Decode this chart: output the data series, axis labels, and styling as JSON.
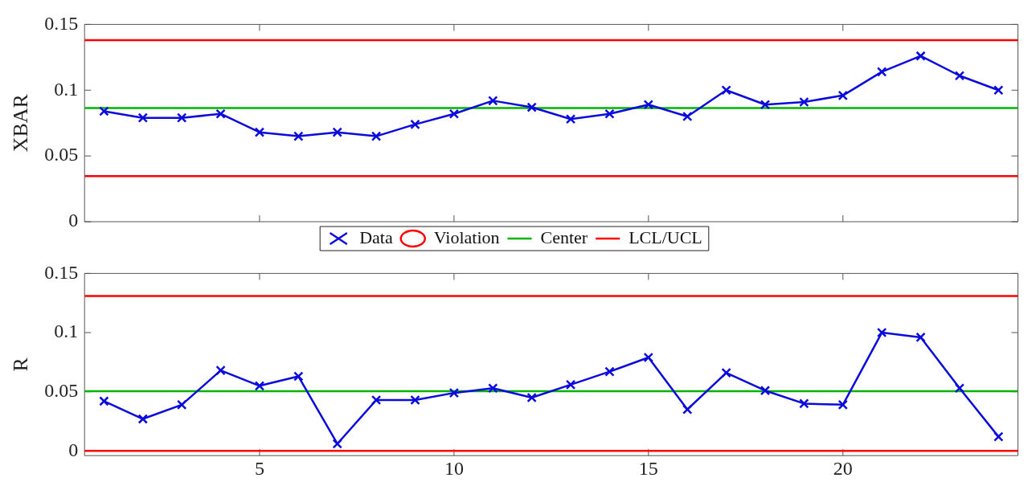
{
  "chart_data": [
    {
      "type": "line",
      "ylabel": "XBAR",
      "x": [
        1,
        2,
        3,
        4,
        5,
        6,
        7,
        8,
        9,
        10,
        11,
        12,
        13,
        14,
        15,
        16,
        17,
        18,
        19,
        20,
        21,
        22,
        23,
        24
      ],
      "xlim": [
        0.5,
        24.5
      ],
      "xticks": [
        5,
        10,
        15,
        20
      ],
      "ylim": [
        0,
        0.15
      ],
      "yticks": [
        0,
        0.05,
        0.1,
        0.15
      ],
      "tick_labels": "y",
      "legend": "bottom",
      "series": [
        {
          "name": "Data",
          "type": "line",
          "marker": "cross",
          "color": "#0a0adc",
          "values": [
            0.084,
            0.079,
            0.079,
            0.082,
            0.068,
            0.065,
            0.068,
            0.065,
            0.074,
            0.082,
            0.092,
            0.087,
            0.078,
            0.082,
            0.089,
            0.08,
            0.1,
            0.089,
            0.091,
            0.096,
            0.114,
            0.126,
            0.111,
            0.1
          ]
        },
        {
          "name": "Violation",
          "type": "scatter",
          "marker": "circle",
          "color": "#ff0000",
          "values": [
            null,
            null,
            null,
            null,
            null,
            null,
            null,
            null,
            null,
            null,
            null,
            null,
            null,
            null,
            null,
            null,
            null,
            null,
            null,
            null,
            null,
            null,
            null,
            null
          ]
        }
      ],
      "ref_lines": [
        {
          "axis": "y",
          "value": 0.0864,
          "label": "Center",
          "color": "#00b400"
        },
        {
          "axis": "y",
          "value": 0.138,
          "label": "LCL/UCL",
          "color": "#ff0000"
        },
        {
          "axis": "y",
          "value": 0.0346,
          "color": "#ff0000"
        }
      ]
    },
    {
      "type": "line",
      "ylabel": "R",
      "x": [
        1,
        2,
        3,
        4,
        5,
        6,
        7,
        8,
        9,
        10,
        11,
        12,
        13,
        14,
        15,
        16,
        17,
        18,
        19,
        20,
        21,
        22,
        23,
        24
      ],
      "xlim": [
        0.5,
        24.5
      ],
      "xticks": [
        5,
        10,
        15,
        20
      ],
      "ylim": [
        -0.004,
        0.15
      ],
      "yticks": [
        0,
        0.05,
        0.1,
        0.15
      ],
      "series": [
        {
          "type": "line",
          "marker": "cross",
          "color": "#0a0adc",
          "values": [
            0.042,
            0.027,
            0.039,
            0.068,
            0.055,
            0.063,
            0.006,
            0.043,
            0.043,
            0.049,
            0.053,
            0.045,
            0.056,
            0.067,
            0.079,
            0.035,
            0.066,
            0.051,
            0.04,
            0.039,
            0.1,
            0.096,
            0.053,
            0.012
          ]
        }
      ],
      "ref_lines": [
        {
          "axis": "y",
          "value": 0.0504,
          "color": "#00b400"
        },
        {
          "axis": "y",
          "value": 0.131,
          "color": "#ff0000"
        },
        {
          "axis": "y",
          "value": 0,
          "color": "#ff0000"
        }
      ]
    }
  ]
}
